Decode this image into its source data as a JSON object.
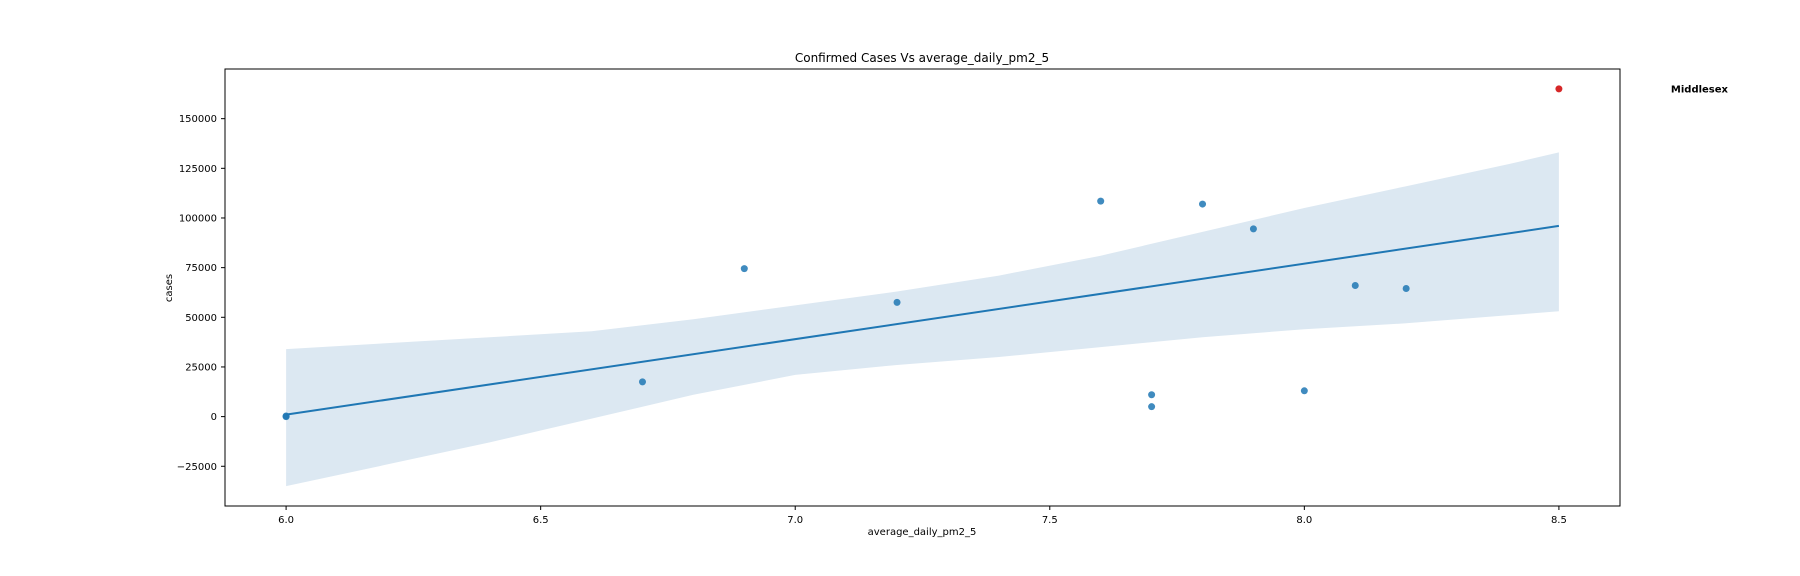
{
  "chart_data": {
    "type": "scatter",
    "title": "Confirmed Cases Vs average_daily_pm2_5",
    "xlabel": "average_daily_pm2_5",
    "ylabel": "cases",
    "xlim": [
      5.88,
      8.62
    ],
    "ylim": [
      -45000,
      175000
    ],
    "xticks": [
      6.0,
      6.5,
      7.0,
      7.5,
      8.0,
      8.5
    ],
    "xtick_labels": [
      "6.0",
      "6.5",
      "7.0",
      "7.5",
      "8.0",
      "8.5"
    ],
    "yticks": [
      -25000,
      0,
      25000,
      50000,
      75000,
      100000,
      125000,
      150000
    ],
    "ytick_labels": [
      "−25000",
      "0",
      "25000",
      "50000",
      "75000",
      "100000",
      "125000",
      "150000"
    ],
    "grid": false,
    "series": [
      {
        "color": "#1f77b4",
        "points": [
          {
            "x": 6.0,
            "y": 0
          },
          {
            "x": 6.0,
            "y": 300
          },
          {
            "x": 6.7,
            "y": 17500
          },
          {
            "x": 6.9,
            "y": 74500
          },
          {
            "x": 7.2,
            "y": 57500
          },
          {
            "x": 7.6,
            "y": 108500
          },
          {
            "x": 7.7,
            "y": 11000
          },
          {
            "x": 7.7,
            "y": 5000
          },
          {
            "x": 7.8,
            "y": 107000
          },
          {
            "x": 7.9,
            "y": 94500
          },
          {
            "x": 8.0,
            "y": 13000
          },
          {
            "x": 8.1,
            "y": 66000
          },
          {
            "x": 8.2,
            "y": 64500
          }
        ]
      },
      {
        "color": "#d62728",
        "points": [
          {
            "x": 8.5,
            "y": 165000
          }
        ]
      }
    ],
    "regression": {
      "color": "#1f77b4",
      "x": [
        6.0,
        8.5
      ],
      "y": [
        1000,
        96000
      ],
      "band_color": "#dce8f2",
      "band_x": [
        6.0,
        6.2,
        6.4,
        6.6,
        6.8,
        7.0,
        7.2,
        7.4,
        7.6,
        7.8,
        8.0,
        8.2,
        8.4,
        8.5
      ],
      "band_upper": [
        34000,
        37000,
        40000,
        43000,
        49000,
        56000,
        63000,
        71000,
        81000,
        93000,
        105000,
        116000,
        127000,
        133000
      ],
      "band_lower": [
        -35000,
        -24000,
        -13000,
        -1000,
        11000,
        21000,
        26000,
        30000,
        35000,
        40000,
        44000,
        47000,
        51000,
        53000
      ]
    },
    "annotations": [
      {
        "text": "Middlesex",
        "x": 8.72,
        "y": 165000
      }
    ]
  }
}
